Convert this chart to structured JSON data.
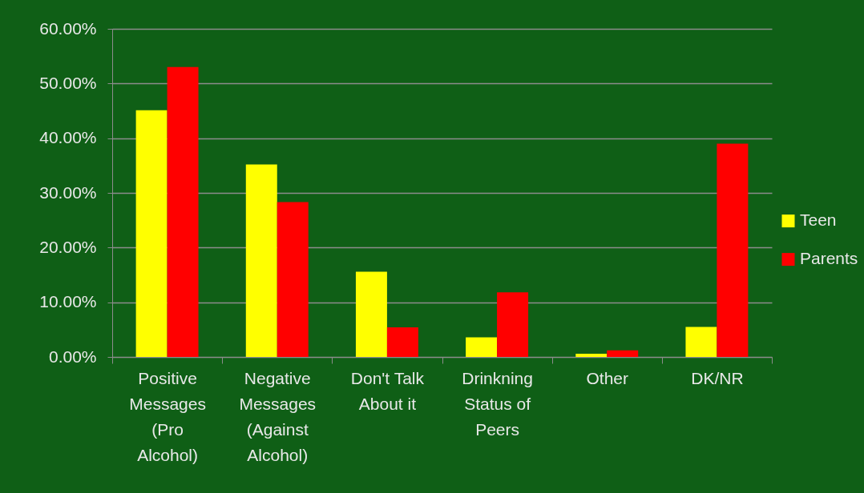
{
  "chart_data": {
    "type": "bar",
    "categories": [
      "Positive Messages (Pro Alcohol)",
      "Negative Messages (Against Alcohol)",
      "Don't Talk About it",
      "Drinkning Status of Peers",
      "Other",
      "DK/NR"
    ],
    "series": [
      {
        "name": "Teen",
        "color": "#ffff00",
        "values": [
          45.1,
          35.2,
          15.6,
          3.6,
          0.6,
          5.5
        ]
      },
      {
        "name": "Parents",
        "color": "#ff0000",
        "values": [
          53.0,
          28.3,
          5.4,
          11.8,
          1.2,
          39.0
        ]
      }
    ],
    "ylim": [
      0,
      60
    ],
    "yticks": [
      {
        "value": 0,
        "label": "0.00%"
      },
      {
        "value": 10,
        "label": "10.00%"
      },
      {
        "value": 20,
        "label": "20.00%"
      },
      {
        "value": 30,
        "label": "30.00%"
      },
      {
        "value": 40,
        "label": "40.00%"
      },
      {
        "value": 50,
        "label": "50.00%"
      },
      {
        "value": 60,
        "label": "60.00%"
      }
    ],
    "grid": "y",
    "legend": "right"
  }
}
